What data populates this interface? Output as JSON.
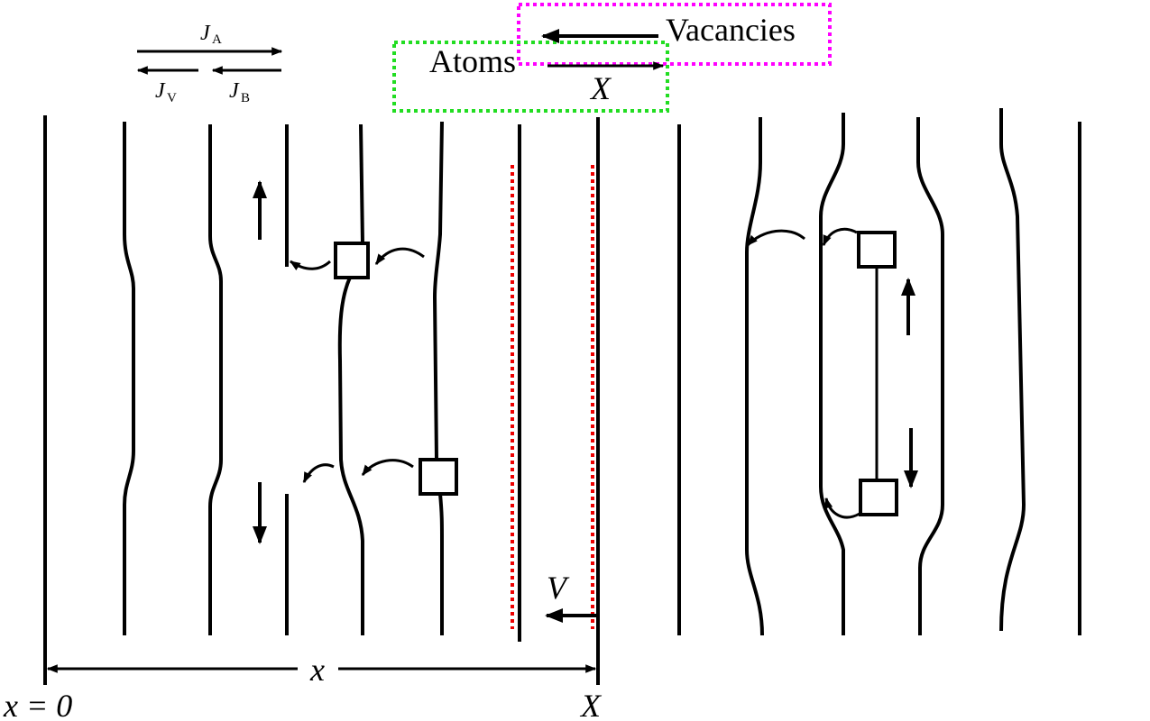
{
  "flux_labels": {
    "j_a": {
      "symbol": "J",
      "subscript": "A"
    },
    "j_v": {
      "symbol": "J",
      "subscript": "V"
    },
    "j_b": {
      "symbol": "J",
      "subscript": "B"
    }
  },
  "legend": {
    "vacancies": "Vacancies",
    "atoms": "Atoms",
    "direction_label": "X"
  },
  "velocity_label": "V",
  "distance_label": "x",
  "origin_label": "x = 0",
  "interface_label": "X"
}
